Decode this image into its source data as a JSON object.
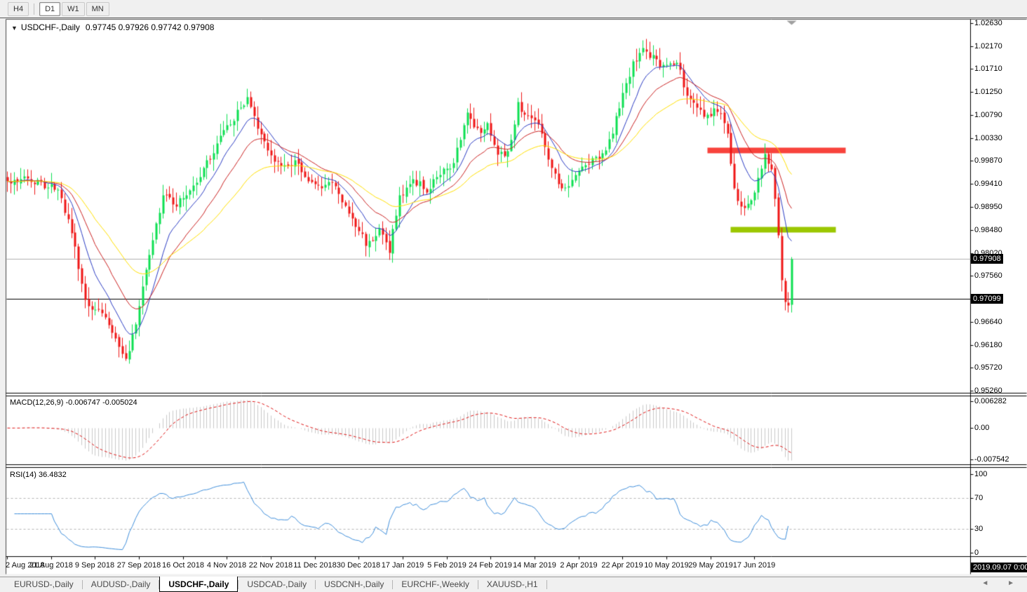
{
  "toolbar": {
    "timeframes": [
      {
        "label": "H4",
        "active": false
      },
      {
        "label": "D1",
        "active": true
      },
      {
        "label": "W1",
        "active": false
      },
      {
        "label": "MN",
        "active": false
      }
    ]
  },
  "chart_header": {
    "dropdown_icon": "▼",
    "symbol": "USDCHF-,Daily",
    "ohlc_text": "0.97745 0.97926 0.97742 0.97908"
  },
  "price_axis": {
    "ticks": [
      "1.02630",
      "1.02170",
      "1.01710",
      "1.01250",
      "1.00790",
      "1.00330",
      "0.99870",
      "0.99410",
      "0.98950",
      "0.98480",
      "0.98020",
      "0.97560",
      "0.96640",
      "0.96180",
      "0.95720",
      "0.95260"
    ],
    "badges": [
      {
        "text": "0.97908",
        "price": 0.97908
      },
      {
        "text": "0.97099",
        "price": 0.97099
      }
    ]
  },
  "macd_axis": [
    "0.006282",
    "0.00",
    "-0.007542"
  ],
  "rsi_axis": [
    "100",
    "70",
    "30",
    "0"
  ],
  "indicators": {
    "macd_label": "MACD(12,26,9) -0.006747 -0.005024",
    "rsi_label": "RSI(14) 36.4832"
  },
  "time_axis": {
    "labels": [
      "2 Aug 2018",
      "21 Aug 2018",
      "9 Sep 2018",
      "27 Sep 2018",
      "16 Oct 2018",
      "4 Nov 2018",
      "22 Nov 2018",
      "11 Dec 2018",
      "30 Dec 2018",
      "17 Jan 2019",
      "5 Feb 2019",
      "24 Feb 2019",
      "14 Mar 2019",
      "2 Apr 2019",
      "22 Apr 2019",
      "10 May 2019",
      "29 May 2019",
      "17 Jun 2019"
    ],
    "current_badge": "2019.09.07 0:00"
  },
  "tabs": {
    "items": [
      "EURUSD-,Daily",
      "AUDUSD-,Daily",
      "USDCHF-,Daily",
      "USDCAD-,Daily",
      "USDCNH-,Daily",
      "EURCHF-,Weekly",
      "XAUUSD-,H1"
    ],
    "active_index": 2,
    "scroll_arrows": "◄ ►"
  },
  "chart_data": {
    "type": "candlestick",
    "symbol": "USDCHF",
    "timeframe": "Daily",
    "title": "USDCHF-,Daily",
    "ohlc_current": {
      "open": 0.97745,
      "high": 0.97926,
      "low": 0.97742,
      "close": 0.97908
    },
    "ylim": [
      0.9526,
      1.0263
    ],
    "candles_count": 233,
    "seed": 11,
    "close_path_anchors": [
      [
        0,
        0.9944
      ],
      [
        6,
        0.9951
      ],
      [
        11,
        0.994
      ],
      [
        15,
        0.9937
      ],
      [
        19,
        0.9845
      ],
      [
        23,
        0.9704
      ],
      [
        27,
        0.969
      ],
      [
        31,
        0.9648
      ],
      [
        35,
        0.9585
      ],
      [
        38,
        0.9663
      ],
      [
        42,
        0.9803
      ],
      [
        46,
        0.9916
      ],
      [
        50,
        0.9902
      ],
      [
        54,
        0.993
      ],
      [
        58,
        0.9972
      ],
      [
        62,
        1.0021
      ],
      [
        66,
        1.0064
      ],
      [
        71,
        1.0113
      ],
      [
        74,
        1.0049
      ],
      [
        78,
        0.9993
      ],
      [
        81,
        0.9971
      ],
      [
        85,
        0.9985
      ],
      [
        89,
        0.9943
      ],
      [
        93,
        0.9929
      ],
      [
        96,
        0.9951
      ],
      [
        99,
        0.9908
      ],
      [
        102,
        0.9873
      ],
      [
        106,
        0.9824
      ],
      [
        110,
        0.9845
      ],
      [
        113,
        0.981
      ],
      [
        116,
        0.9916
      ],
      [
        120,
        0.9951
      ],
      [
        124,
        0.993
      ],
      [
        128,
        0.9965
      ],
      [
        132,
        0.9979
      ],
      [
        136,
        1.0085
      ],
      [
        139,
        1.0049
      ],
      [
        142,
        1.0056
      ],
      [
        145,
        1.0007
      ],
      [
        148,
        1.0
      ],
      [
        151,
        1.0099
      ],
      [
        154,
        1.0078
      ],
      [
        157,
        1.0064
      ],
      [
        160,
        0.9986
      ],
      [
        164,
        0.993
      ],
      [
        167,
        0.9951
      ],
      [
        170,
        0.9972
      ],
      [
        173,
        0.9993
      ],
      [
        176,
        1.0
      ],
      [
        179,
        1.0049
      ],
      [
        182,
        1.0126
      ],
      [
        185,
        1.0183
      ],
      [
        188,
        1.0208
      ],
      [
        191,
        1.0196
      ],
      [
        194,
        1.0176
      ],
      [
        198,
        1.019
      ],
      [
        201,
        1.0113
      ],
      [
        204,
        1.0092
      ],
      [
        207,
        1.0078
      ],
      [
        210,
        1.0092
      ],
      [
        213,
        1.0049
      ],
      [
        215,
        0.993
      ],
      [
        217,
        0.9894
      ],
      [
        220,
        0.9908
      ],
      [
        222,
        0.9951
      ],
      [
        224,
        1.0
      ],
      [
        226,
        0.9965
      ],
      [
        228,
        0.9845
      ],
      [
        229,
        0.9747
      ],
      [
        230,
        0.9704
      ],
      [
        231,
        0.9697
      ],
      [
        232,
        0.97908
      ]
    ],
    "levels": {
      "current_price_line": 0.97908,
      "horizontal_line": 0.97099,
      "resistance_band": {
        "price": 1.0008,
        "from_index": 207,
        "to_index": 248,
        "color": "#f8433c"
      },
      "support_band": {
        "price": 0.9849,
        "from_index": 214,
        "to_index": 245,
        "color": "#9bc700"
      }
    },
    "moving_averages": [
      {
        "period": 10,
        "color": "#2b3cc4"
      },
      {
        "period": 20,
        "color": "#cc2222"
      },
      {
        "period": 40,
        "color": "#ffe100"
      }
    ],
    "macd": {
      "fast": 12,
      "slow": 26,
      "signal": 9,
      "current_main": -0.006747,
      "current_signal": -0.005024,
      "ylim": [
        -0.007542,
        0.006282
      ],
      "hist_color": "#c9c9c9",
      "signal_color": "#e01212"
    },
    "rsi": {
      "period": 14,
      "current": 36.4832,
      "levels": [
        70,
        30
      ],
      "ylim": [
        0,
        100
      ],
      "color": "#3f8fdc"
    },
    "colors": {
      "bull": "#0ddf52",
      "bear": "#ef1616",
      "grid_dash": "#b5b5b5",
      "price_line": "#b0b0b0",
      "hline": "#000000",
      "marker": "#a0a0a0"
    }
  }
}
